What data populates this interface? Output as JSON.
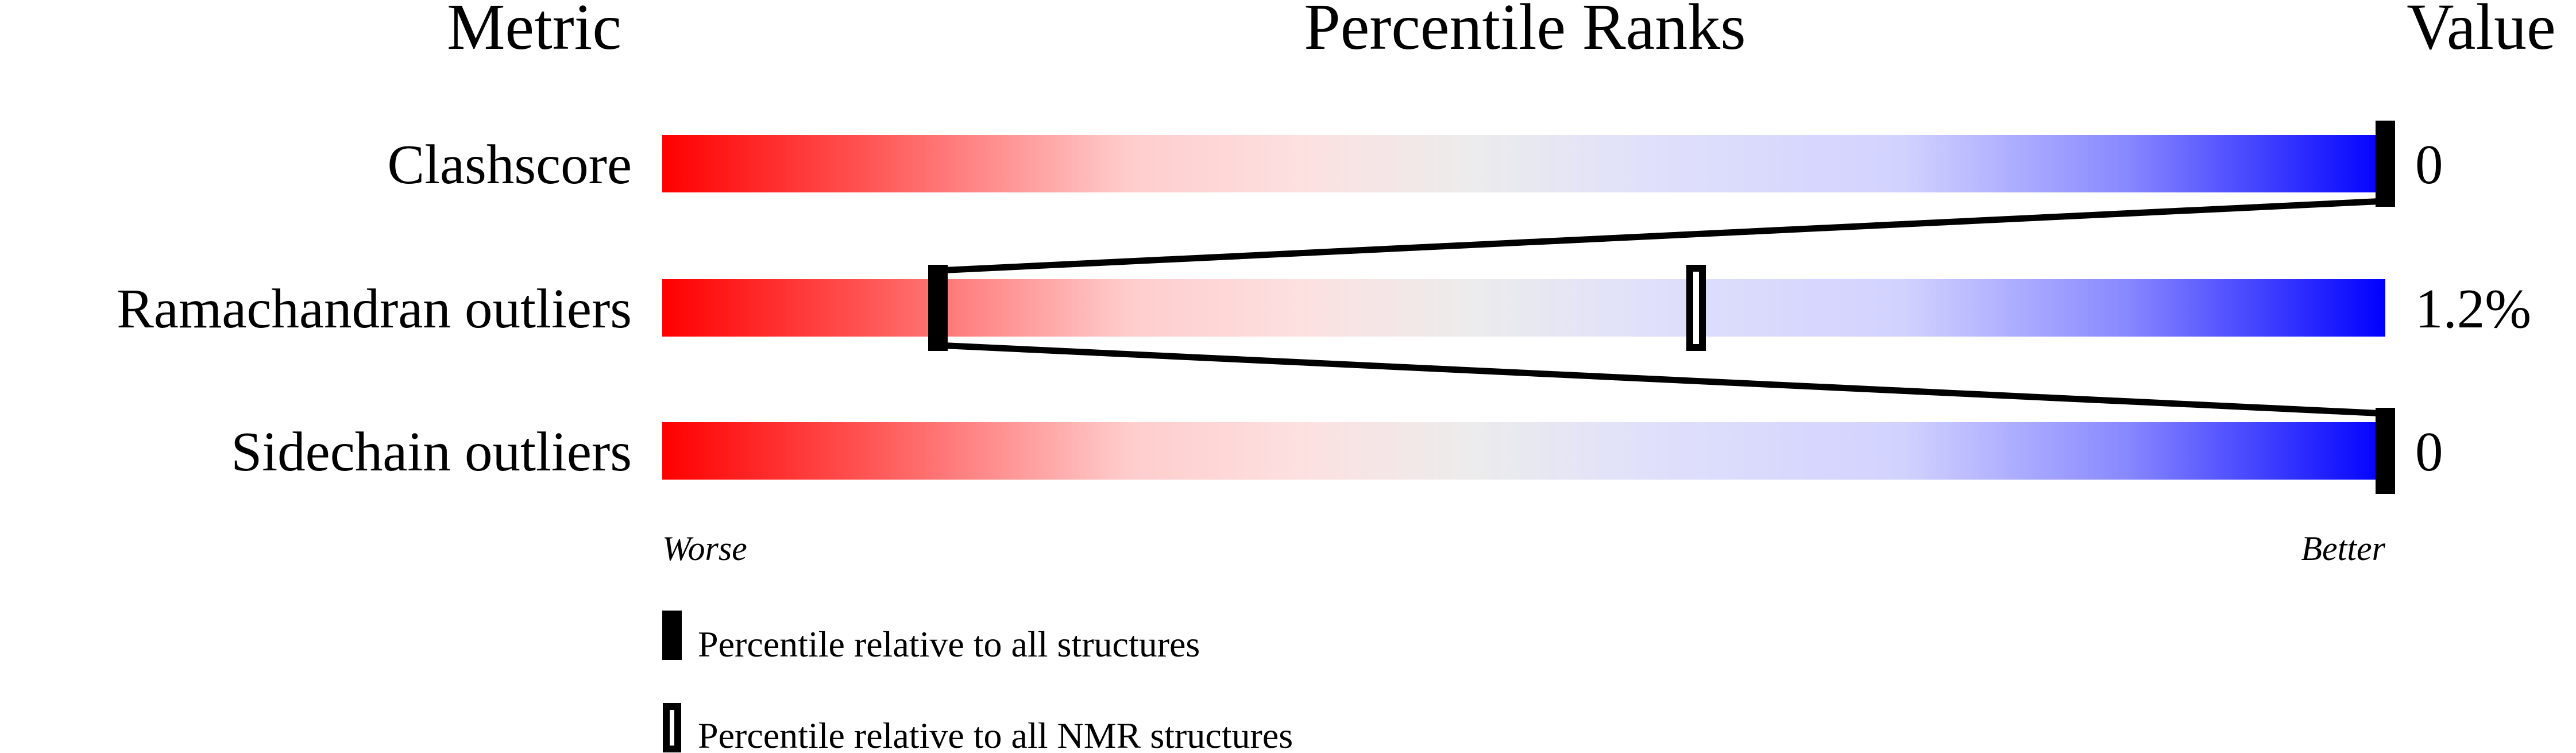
{
  "chart_data": {
    "type": "percentile-bar",
    "headers": {
      "metric": "Metric",
      "ranks": "Percentile Ranks",
      "value": "Value"
    },
    "xlim": [
      0,
      100
    ],
    "rows": [
      {
        "metric": "Clashscore",
        "value": "0",
        "percentile_all": 100,
        "percentile_nmr": null
      },
      {
        "metric": "Ramachandran outliers",
        "value": "1.2%",
        "percentile_all": 16,
        "percentile_nmr": 60
      },
      {
        "metric": "Sidechain outliers",
        "value": "0",
        "percentile_all": 100,
        "percentile_nmr": null
      }
    ],
    "axis_labels": {
      "left": "Worse",
      "right": "Better"
    },
    "legend": [
      {
        "marker": "filled",
        "label": "Percentile relative to all structures"
      },
      {
        "marker": "hollow",
        "label": "Percentile relative to all NMR structures"
      }
    ],
    "colors": {
      "worse": "#ff0000",
      "middle": "#eeeeee",
      "better": "#0000ff",
      "marker": "#000000"
    }
  }
}
